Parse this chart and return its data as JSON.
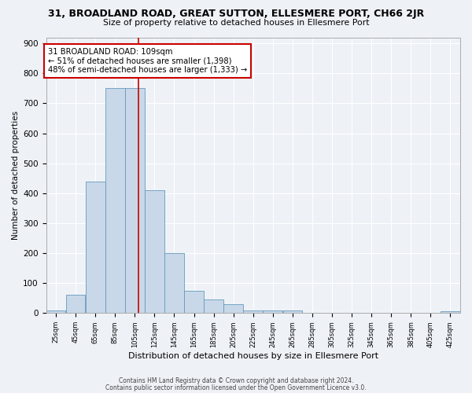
{
  "title": "31, BROADLAND ROAD, GREAT SUTTON, ELLESMERE PORT, CH66 2JR",
  "subtitle": "Size of property relative to detached houses in Ellesmere Port",
  "xlabel": "Distribution of detached houses by size in Ellesmere Port",
  "ylabel": "Number of detached properties",
  "bar_values": [
    10,
    60,
    440,
    750,
    750,
    410,
    200,
    75,
    45,
    30,
    10,
    10,
    10,
    0,
    0,
    0,
    0,
    0,
    0,
    0,
    5
  ],
  "bin_labels": [
    "25sqm",
    "45sqm",
    "65sqm",
    "85sqm",
    "105sqm",
    "125sqm",
    "145sqm",
    "165sqm",
    "185sqm",
    "205sqm",
    "225sqm",
    "245sqm",
    "265sqm",
    "285sqm",
    "305sqm",
    "325sqm",
    "345sqm",
    "365sqm",
    "385sqm",
    "405sqm",
    "425sqm"
  ],
  "bin_edges": [
    15,
    35,
    55,
    75,
    95,
    115,
    135,
    155,
    175,
    195,
    215,
    235,
    255,
    275,
    295,
    315,
    335,
    355,
    375,
    395,
    415,
    435
  ],
  "bar_color": "#c8d8e8",
  "bar_edge_color": "#6699bb",
  "property_value": 109,
  "vline_color": "#cc0000",
  "annotation_text": "31 BROADLAND ROAD: 109sqm\n← 51% of detached houses are smaller (1,398)\n48% of semi-detached houses are larger (1,333) →",
  "annotation_box_color": "#ffffff",
  "annotation_box_edge": "#cc0000",
  "ylim": [
    0,
    920
  ],
  "yticks": [
    0,
    100,
    200,
    300,
    400,
    500,
    600,
    700,
    800,
    900
  ],
  "background_color": "#eef2f7",
  "grid_color": "#ffffff",
  "footer_line1": "Contains HM Land Registry data © Crown copyright and database right 2024.",
  "footer_line2": "Contains public sector information licensed under the Open Government Licence v3.0."
}
